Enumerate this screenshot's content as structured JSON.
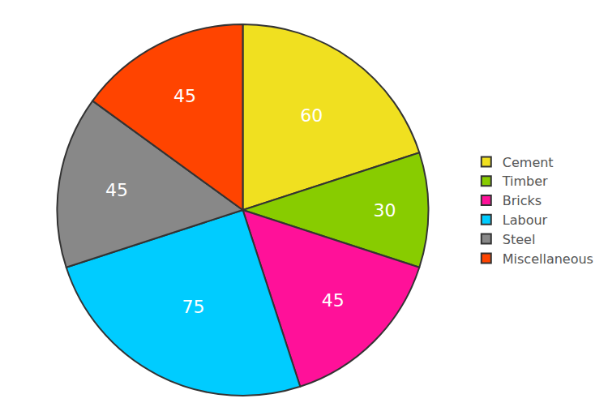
{
  "chart_data": {
    "type": "pie",
    "categories": [
      "Cement",
      "Timber",
      "Bricks",
      "Labour",
      "Steel",
      "Miscellaneous"
    ],
    "values": [
      60,
      30,
      45,
      75,
      45,
      45
    ],
    "colors": [
      "#F0E020",
      "#88CC00",
      "#FF1199",
      "#00CCFF",
      "#888888",
      "#FF4400"
    ],
    "data_labels": true,
    "legend": "right"
  }
}
